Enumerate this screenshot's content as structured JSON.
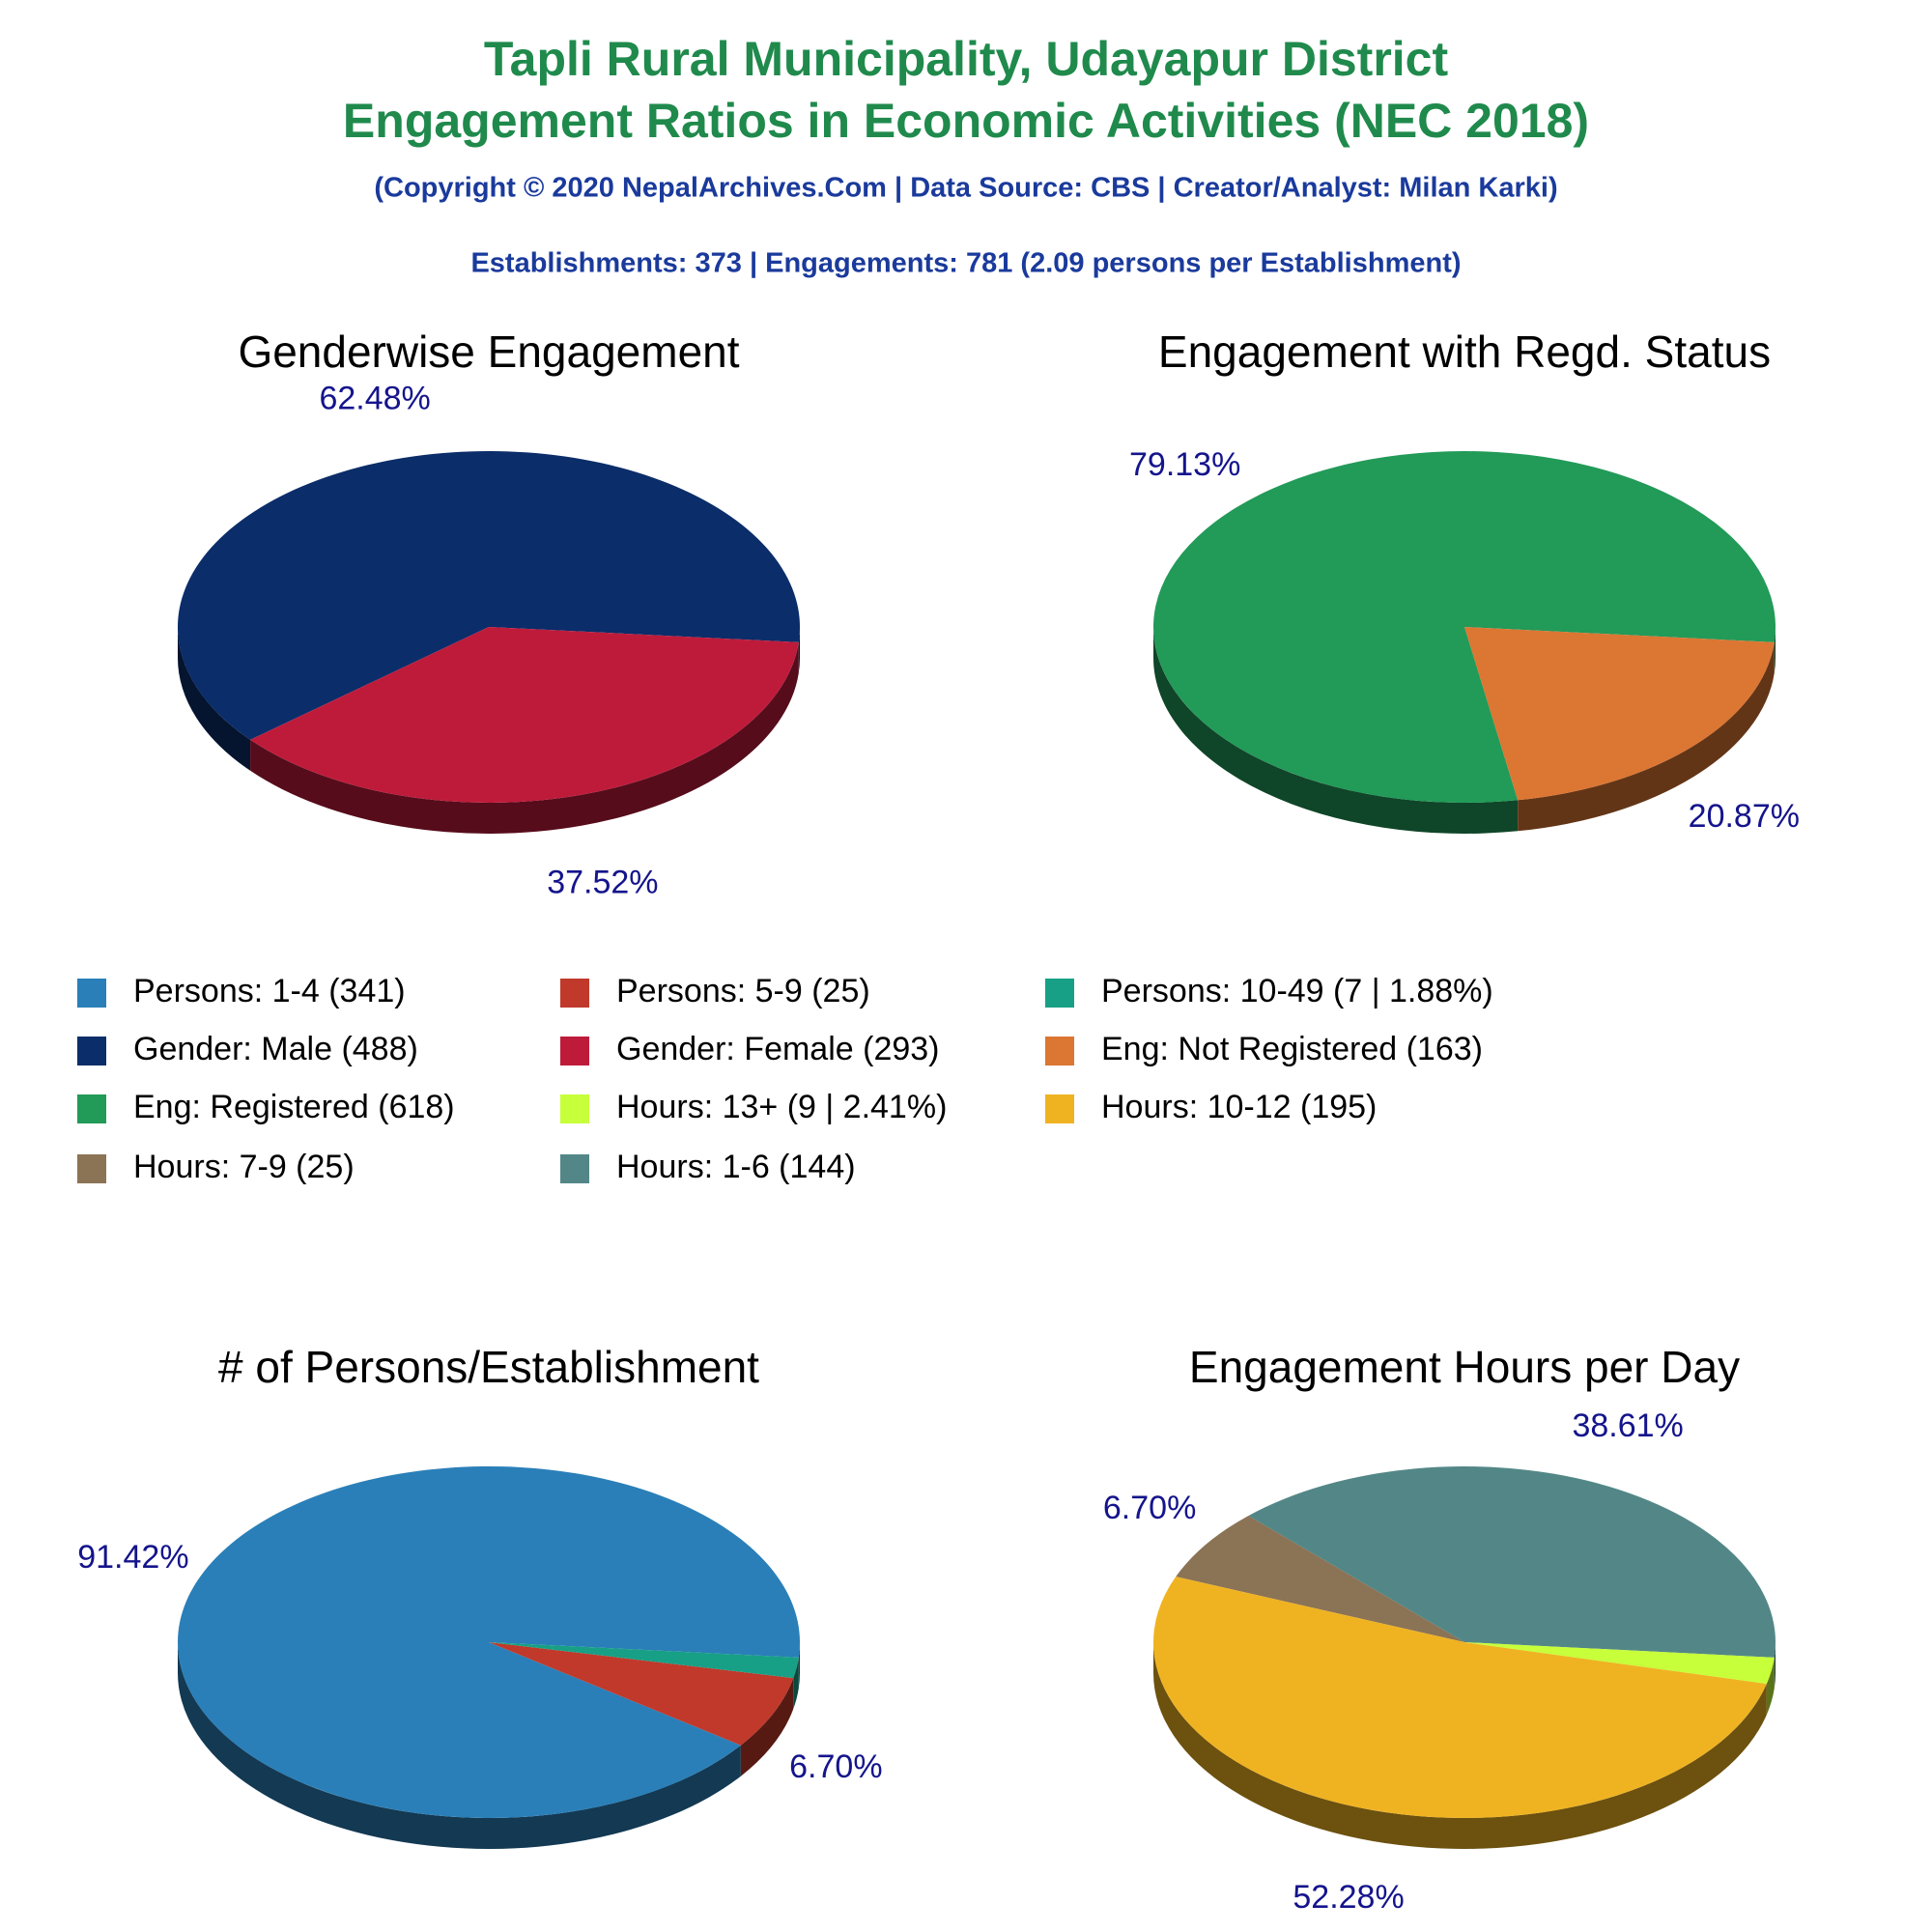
{
  "header": {
    "title_line1": "Tapli Rural Municipality, Udayapur District",
    "title_line2": "Engagement Ratios in Economic Activities (NEC 2018)",
    "subtitle": "(Copyright © 2020 NepalArchives.Com | Data Source: CBS | Creator/Analyst: Milan Karki)",
    "stats": "Establishments: 373 | Engagements: 781 (2.09 persons per Establishment)"
  },
  "legend": [
    {
      "label": "Persons: 1-4 (341)",
      "color": "#2a7fb8"
    },
    {
      "label": "Persons: 5-9 (25)",
      "color": "#c0392b"
    },
    {
      "label": "Persons: 10-49 (7 | 1.88%)",
      "color": "#17a085"
    },
    {
      "label": "Gender: Male (488)",
      "color": "#0b2d69"
    },
    {
      "label": "Gender: Female (293)",
      "color": "#be1b3b"
    },
    {
      "label": "Eng: Not Registered (163)",
      "color": "#dc7633"
    },
    {
      "label": "Eng: Registered (618)",
      "color": "#229a58"
    },
    {
      "label": "Hours: 13+ (9 | 2.41%)",
      "color": "#c7ff3a"
    },
    {
      "label": "Hours: 10-12 (195)",
      "color": "#efb322"
    },
    {
      "label": "Hours: 7-9 (25)",
      "color": "#8b7355"
    },
    {
      "label": "Hours: 1-6 (144)",
      "color": "#538787"
    }
  ],
  "chart_data": [
    {
      "type": "pie",
      "title": "Genderwise Engagement",
      "values": [
        62.48,
        37.52
      ],
      "value_labels": [
        "62.48%",
        "37.52%"
      ],
      "colors": [
        "#0b2d69",
        "#be1b3b"
      ]
    },
    {
      "type": "pie",
      "title": "Engagement with Regd. Status",
      "values": [
        79.13,
        20.87
      ],
      "value_labels": [
        "79.13%",
        "20.87%"
      ],
      "colors": [
        "#229a58",
        "#dc7633"
      ]
    },
    {
      "type": "pie",
      "title": "# of Persons/Establishment",
      "values": [
        91.42,
        6.7,
        1.88
      ],
      "value_labels": [
        "91.42%",
        "6.70%",
        null
      ],
      "colors": [
        "#2a7fb8",
        "#c0392b",
        "#17a085"
      ]
    },
    {
      "type": "pie",
      "title": "Engagement Hours per Day",
      "values": [
        38.61,
        6.7,
        52.28,
        2.41
      ],
      "value_labels": [
        "38.61%",
        "6.70%",
        "52.28%",
        null
      ],
      "colors": [
        "#538787",
        "#8b7355",
        "#efb322",
        "#c7ff3a"
      ]
    }
  ]
}
